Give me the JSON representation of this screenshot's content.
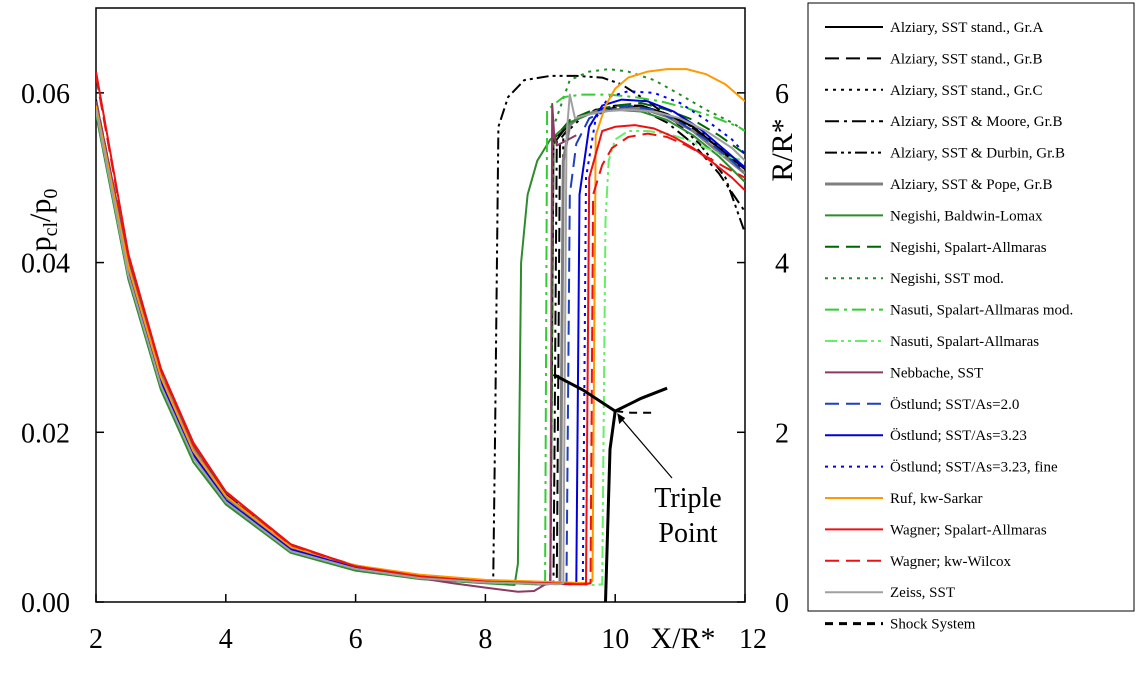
{
  "chart_data": {
    "type": "line",
    "ylabel_left": "p",
    "ylabel_left_sub1": "cl",
    "ylabel_left_mid": "/p",
    "ylabel_left_sub2": "0",
    "ylabel_right": "R/R*",
    "xlabel": "X/R*",
    "xlim": [
      2,
      12
    ],
    "ylim_left": [
      0,
      0.07
    ],
    "ylim_right": [
      0,
      7
    ],
    "x_ticks": [
      2,
      4,
      6,
      8,
      10,
      12
    ],
    "x_tick_labels": [
      "2",
      "4",
      "6",
      "8",
      "10",
      "12"
    ],
    "y_left_ticks": [
      0,
      0.02,
      0.04,
      0.06
    ],
    "y_left_tick_labels": [
      "0.00",
      "0.02",
      "0.04",
      "0.06"
    ],
    "y_right_ticks": [
      0,
      2,
      4,
      6
    ],
    "y_right_tick_labels": [
      "0",
      "2",
      "4",
      "6"
    ],
    "grid": false,
    "legend_position": "right",
    "annotation": {
      "line1": "Triple",
      "line2": "Point",
      "arrow_to": [
        10.0,
        2.25
      ]
    },
    "series": [
      {
        "name": "Alziary, SST stand., Gr.A",
        "color": "#000000",
        "dash": "",
        "width": 2,
        "x": [
          2,
          2.5,
          3,
          3.5,
          4,
          5,
          6,
          7,
          8,
          8.8,
          9.0,
          9.05,
          9.3,
          9.6,
          9.8,
          10.0,
          10.4,
          10.8,
          11.2,
          11.6,
          12
        ],
        "y": [
          0.059,
          0.04,
          0.027,
          0.018,
          0.0125,
          0.0065,
          0.0042,
          0.0031,
          0.0025,
          0.0022,
          0.0023,
          0.054,
          0.0565,
          0.0575,
          0.058,
          0.058,
          0.0585,
          0.0575,
          0.056,
          0.0535,
          0.051
        ]
      },
      {
        "name": "Alziary, SST stand., Gr.B",
        "color": "#000000",
        "dash": "14,7",
        "width": 2,
        "x": [
          2,
          2.5,
          3,
          3.5,
          4,
          5,
          6,
          7,
          8,
          8.9,
          9.1,
          9.15,
          9.4,
          9.7,
          10.0,
          10.4,
          10.8,
          11.2,
          11.6,
          12
        ],
        "y": [
          0.0592,
          0.0402,
          0.0272,
          0.0182,
          0.0127,
          0.0066,
          0.0043,
          0.0031,
          0.0025,
          0.0022,
          0.0023,
          0.0545,
          0.057,
          0.058,
          0.0585,
          0.0585,
          0.0575,
          0.0558,
          0.0535,
          0.0505
        ]
      },
      {
        "name": "Alziary, SST stand., Gr.C",
        "color": "#000000",
        "dash": "3,5",
        "width": 2,
        "x": [
          2,
          2.5,
          3,
          3.5,
          4,
          5,
          6,
          7,
          8,
          8.9,
          9.15,
          9.2,
          9.5,
          9.8,
          10.1,
          10.5,
          10.9,
          11.3,
          11.7,
          12
        ],
        "y": [
          0.0588,
          0.0398,
          0.0268,
          0.018,
          0.0124,
          0.0064,
          0.0041,
          0.003,
          0.0024,
          0.0021,
          0.0022,
          0.055,
          0.0572,
          0.058,
          0.0585,
          0.0583,
          0.0572,
          0.0555,
          0.053,
          0.0505
        ]
      },
      {
        "name": "Alziary, SST & Moore, Gr.B",
        "color": "#000000",
        "dash": "14,5,3,5",
        "width": 2,
        "x": [
          2,
          2.5,
          3,
          3.5,
          4,
          5,
          6,
          7,
          8,
          8.85,
          9.05,
          9.1,
          9.4,
          9.7,
          10.0,
          10.4,
          10.8,
          11.2,
          11.6,
          12
        ],
        "y": [
          0.059,
          0.04,
          0.027,
          0.0181,
          0.0126,
          0.0065,
          0.0042,
          0.0031,
          0.0025,
          0.0022,
          0.0023,
          0.0548,
          0.057,
          0.058,
          0.0582,
          0.058,
          0.0565,
          0.054,
          0.0505,
          0.046
        ]
      },
      {
        "name": "Alziary, SST & Durbin, Gr.B",
        "color": "#000000",
        "dash": "12,4,3,4,3,4",
        "width": 2,
        "x": [
          2,
          2.5,
          3,
          3.5,
          4,
          5,
          6,
          7,
          8,
          8.12,
          8.15,
          8.2,
          8.35,
          8.6,
          9.0,
          9.4,
          9.8,
          10.1,
          10.5,
          10.9,
          11.3,
          11.7,
          12
        ],
        "y": [
          0.059,
          0.04,
          0.027,
          0.0181,
          0.0126,
          0.0065,
          0.0042,
          0.0031,
          0.0025,
          0.0024,
          0.02,
          0.056,
          0.0595,
          0.0615,
          0.062,
          0.062,
          0.0618,
          0.061,
          0.059,
          0.0568,
          0.054,
          0.05,
          0.0435
        ]
      },
      {
        "name": "Alziary, SST & Pope, Gr.B",
        "color": "#808080",
        "dash": "",
        "width": 3,
        "x": [
          2,
          2.5,
          3,
          3.5,
          4,
          5,
          6,
          7,
          8,
          8.9,
          9.15,
          9.2,
          9.3,
          9.45,
          9.7,
          10.0,
          10.4,
          10.8,
          11.2,
          11.6,
          12
        ],
        "y": [
          0.0588,
          0.0398,
          0.0268,
          0.018,
          0.0124,
          0.0064,
          0.0041,
          0.003,
          0.0024,
          0.0021,
          0.0023,
          0.052,
          0.0562,
          0.0572,
          0.0578,
          0.058,
          0.0582,
          0.0572,
          0.0555,
          0.053,
          0.0505
        ]
      },
      {
        "name": "Negishi, Baldwin-Lomax",
        "color": "#2e8b2e",
        "dash": "",
        "width": 2,
        "x": [
          2,
          2.5,
          3,
          3.5,
          4,
          5,
          6,
          7,
          8,
          8.45,
          8.5,
          8.55,
          8.65,
          8.8,
          9.0,
          9.3,
          9.6,
          10.0,
          10.4,
          10.8,
          11.2,
          11.6,
          12
        ],
        "y": [
          0.0575,
          0.038,
          0.025,
          0.0165,
          0.0115,
          0.0058,
          0.0037,
          0.0027,
          0.0022,
          0.002,
          0.0045,
          0.04,
          0.048,
          0.052,
          0.0545,
          0.0565,
          0.0575,
          0.058,
          0.0578,
          0.0568,
          0.055,
          0.0525,
          0.0495
        ]
      },
      {
        "name": "Negishi, Spalart-Allmaras",
        "color": "#006400",
        "dash": "14,7",
        "width": 2,
        "x": [
          2,
          2.5,
          3,
          3.5,
          4,
          5,
          6,
          7,
          8,
          8.85,
          9.0,
          9.05,
          9.3,
          9.6,
          10.0,
          10.4,
          10.8,
          11.2,
          11.6,
          12
        ],
        "y": [
          0.058,
          0.0385,
          0.0255,
          0.017,
          0.0118,
          0.006,
          0.0039,
          0.0028,
          0.0023,
          0.0021,
          0.0022,
          0.0545,
          0.0568,
          0.0578,
          0.0585,
          0.0588,
          0.058,
          0.0568,
          0.055,
          0.0528
        ]
      },
      {
        "name": "Negishi, SST mod.",
        "color": "#228b22",
        "dash": "3,5",
        "width": 2,
        "x": [
          2,
          2.5,
          3,
          3.5,
          4,
          5,
          6,
          7,
          8,
          8.85,
          9.0,
          9.05,
          9.3,
          9.6,
          9.9,
          10.2,
          10.6,
          11.0,
          11.4,
          11.8,
          12
        ],
        "y": [
          0.058,
          0.0385,
          0.0255,
          0.017,
          0.0118,
          0.006,
          0.0039,
          0.0028,
          0.0023,
          0.0021,
          0.0022,
          0.056,
          0.0615,
          0.0625,
          0.0628,
          0.0625,
          0.0615,
          0.0598,
          0.058,
          0.0565,
          0.0555
        ]
      },
      {
        "name": "Nasuti, Spalart-Allmaras mod.",
        "color": "#33cc33",
        "dash": "14,5,3,5",
        "width": 2,
        "x": [
          2,
          2.5,
          3,
          3.5,
          4,
          5,
          6,
          7,
          8,
          8.85,
          8.92,
          8.95,
          9.2,
          9.5,
          9.9,
          10.3,
          10.7,
          11.1,
          11.5,
          11.9,
          12
        ],
        "y": [
          0.058,
          0.0385,
          0.0255,
          0.017,
          0.0118,
          0.006,
          0.0039,
          0.0028,
          0.0023,
          0.0021,
          0.0022,
          0.058,
          0.0595,
          0.0598,
          0.0598,
          0.0595,
          0.059,
          0.0582,
          0.0572,
          0.056,
          0.0555
        ]
      },
      {
        "name": "Nasuti, Spalart-Allmaras",
        "color": "#66ee66",
        "dash": "12,4,3,4,3,4",
        "width": 2,
        "x": [
          2,
          2.5,
          3,
          3.5,
          4,
          5,
          6,
          7,
          8,
          9.7,
          9.8,
          9.85,
          9.9,
          10.0,
          10.2,
          10.5,
          10.8,
          11.1,
          11.4,
          11.7,
          12
        ],
        "y": [
          0.058,
          0.0385,
          0.0255,
          0.017,
          0.0118,
          0.006,
          0.0039,
          0.0028,
          0.0023,
          0.002,
          0.0021,
          0.045,
          0.052,
          0.0545,
          0.0555,
          0.0555,
          0.0552,
          0.0545,
          0.0535,
          0.0525,
          0.052
        ]
      },
      {
        "name": "Nebbache, SST",
        "color": "#8b3a62",
        "dash": "",
        "width": 2,
        "x": [
          2,
          2.5,
          3,
          3.5,
          4,
          5,
          6,
          7,
          7.5,
          8,
          8.5,
          8.75,
          8.95,
          9.0,
          9.03,
          9.06,
          9.1,
          9.2,
          9.4
        ],
        "y": [
          0.059,
          0.0405,
          0.0275,
          0.0185,
          0.013,
          0.0068,
          0.0042,
          0.0028,
          0.0022,
          0.0017,
          0.0012,
          0.0013,
          0.0022,
          0.0023,
          0.0587,
          0.055,
          0.0538,
          0.0542,
          0.055
        ]
      },
      {
        "name": "Östlund; SST/As=2.0",
        "color": "#1f3fbf",
        "dash": "14,7",
        "width": 2,
        "x": [
          2,
          2.5,
          3,
          3.5,
          4,
          5,
          6,
          7,
          8,
          9.1,
          9.25,
          9.3,
          9.4,
          9.6,
          9.9,
          10.2,
          10.6,
          11.0,
          11.4,
          11.8,
          12
        ],
        "y": [
          0.0585,
          0.039,
          0.026,
          0.0174,
          0.012,
          0.0062,
          0.004,
          0.0029,
          0.0024,
          0.0021,
          0.0022,
          0.048,
          0.054,
          0.057,
          0.058,
          0.0585,
          0.058,
          0.0565,
          0.0545,
          0.052,
          0.0505
        ]
      },
      {
        "name": "Östlund; SST/As=3.23",
        "color": "#0000dd",
        "dash": "",
        "width": 2,
        "x": [
          2,
          2.5,
          3,
          3.5,
          4,
          5,
          6,
          7,
          8,
          9.3,
          9.4,
          9.45,
          9.6,
          9.8,
          10.1,
          10.5,
          10.9,
          11.3,
          11.7,
          12
        ],
        "y": [
          0.0585,
          0.039,
          0.026,
          0.0174,
          0.012,
          0.0062,
          0.004,
          0.0029,
          0.0024,
          0.0021,
          0.0022,
          0.048,
          0.056,
          0.0585,
          0.0592,
          0.059,
          0.0578,
          0.0558,
          0.0532,
          0.0512
        ]
      },
      {
        "name": "Östlund; SST/As=3.23, fine",
        "color": "#0000ff",
        "dash": "3,5",
        "width": 2,
        "x": [
          2,
          2.5,
          3,
          3.5,
          4,
          5,
          6,
          7,
          8,
          9.4,
          9.5,
          9.55,
          9.7,
          9.9,
          10.2,
          10.6,
          11.0,
          11.4,
          11.8,
          12
        ],
        "y": [
          0.0585,
          0.039,
          0.026,
          0.0174,
          0.012,
          0.0062,
          0.004,
          0.0029,
          0.0024,
          0.0021,
          0.0022,
          0.05,
          0.057,
          0.0595,
          0.0602,
          0.06,
          0.0588,
          0.0568,
          0.0545,
          0.0528
        ]
      },
      {
        "name": "Ruf, kw-Sarkar",
        "color": "#ff9900",
        "dash": "",
        "width": 2,
        "x": [
          2,
          2.5,
          3,
          3.5,
          4,
          5,
          6,
          7,
          8,
          9.6,
          9.65,
          9.7,
          9.85,
          10.0,
          10.2,
          10.5,
          10.8,
          11.1,
          11.4,
          11.7,
          12
        ],
        "y": [
          0.0585,
          0.0395,
          0.0265,
          0.0178,
          0.0125,
          0.0065,
          0.0043,
          0.0032,
          0.0026,
          0.0022,
          0.0025,
          0.055,
          0.0585,
          0.0605,
          0.0618,
          0.0625,
          0.0628,
          0.0628,
          0.0622,
          0.061,
          0.059
        ]
      },
      {
        "name": "Wagner; Spalart-Allmaras",
        "color": "#ee1111",
        "dash": "",
        "width": 2,
        "x": [
          2,
          2.5,
          3,
          3.5,
          4,
          5,
          6,
          7,
          8,
          9.5,
          9.55,
          9.6,
          9.8,
          10.0,
          10.3,
          10.6,
          10.9,
          11.2,
          11.5,
          11.8,
          12
        ],
        "y": [
          0.0625,
          0.041,
          0.0275,
          0.0188,
          0.013,
          0.0068,
          0.0042,
          0.003,
          0.0024,
          0.0021,
          0.0022,
          0.05,
          0.0555,
          0.056,
          0.0562,
          0.0558,
          0.0548,
          0.0535,
          0.0518,
          0.05,
          0.0485
        ]
      },
      {
        "name": "Wagner; kw-Wilcox",
        "color": "#ee1111",
        "dash": "14,7",
        "width": 2,
        "x": [
          2,
          2.5,
          3,
          3.5,
          4,
          5,
          6,
          7,
          8,
          9.55,
          9.62,
          9.66,
          9.8,
          9.95,
          10.2,
          10.5,
          10.8,
          11.1,
          11.4,
          11.7,
          12
        ],
        "y": [
          0.062,
          0.0408,
          0.0273,
          0.0186,
          0.0129,
          0.0067,
          0.0042,
          0.003,
          0.0024,
          0.0021,
          0.0022,
          0.048,
          0.0515,
          0.0535,
          0.0548,
          0.0552,
          0.0548,
          0.0538,
          0.0525,
          0.0512,
          0.05
        ]
      },
      {
        "name": "Zeiss, SST",
        "color": "#a0a0a0",
        "dash": "",
        "width": 2,
        "x": [
          2,
          2.5,
          3,
          3.5,
          4,
          5,
          6,
          7,
          8,
          9.15,
          9.2,
          9.25,
          9.3,
          9.38,
          9.5,
          9.8,
          10.2,
          10.6,
          11.0,
          11.4,
          11.8,
          12
        ],
        "y": [
          0.058,
          0.0385,
          0.0255,
          0.017,
          0.0118,
          0.006,
          0.0039,
          0.0028,
          0.0023,
          0.0021,
          0.0022,
          0.055,
          0.0598,
          0.057,
          0.0573,
          0.0578,
          0.058,
          0.0578,
          0.057,
          0.0555,
          0.0535,
          0.052
        ]
      }
    ],
    "shock_system": {
      "name": "Shock System",
      "axis": "right",
      "color": "#000000",
      "segments": [
        {
          "dash": "",
          "width": 3,
          "x": [
            9.85,
            9.92,
            10.0
          ],
          "y": [
            0.0,
            1.8,
            2.25
          ]
        },
        {
          "dash": "",
          "width": 3,
          "x": [
            9.05,
            9.5,
            10.0
          ],
          "y": [
            2.68,
            2.5,
            2.25
          ]
        },
        {
          "dash": "",
          "width": 3,
          "x": [
            10.0,
            10.4,
            10.8
          ],
          "y": [
            2.25,
            2.4,
            2.52
          ]
        },
        {
          "dash": "8,6",
          "width": 2,
          "x": [
            10.0,
            10.25,
            10.6
          ],
          "y": [
            2.25,
            2.23,
            2.23
          ]
        }
      ]
    }
  }
}
